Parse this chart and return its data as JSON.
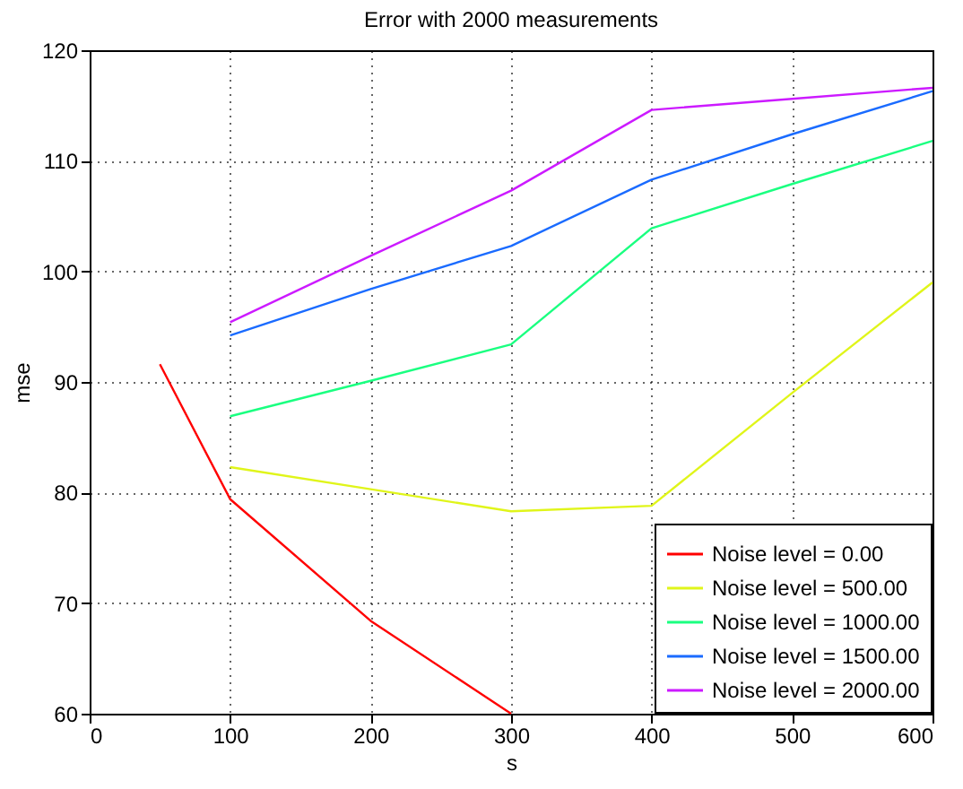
{
  "chart_data": {
    "type": "line",
    "title": "Error with 2000 measurements",
    "xlabel": "s",
    "ylabel": "mse",
    "xlim": [
      0,
      600
    ],
    "xticks": [
      0,
      100,
      200,
      300,
      400,
      500,
      600
    ],
    "ylim": [
      60,
      120
    ],
    "yticks": [
      60,
      70,
      80,
      90,
      100,
      110,
      120
    ],
    "grid": true,
    "legend": "bottom right",
    "line_style": "solid",
    "marker": "none",
    "series": [
      {
        "name": "Noise level = 0.00",
        "color": "#ff0000",
        "x": [
          50,
          100,
          200,
          300
        ],
        "values": [
          91.6,
          79.4,
          68.4,
          60
        ]
      },
      {
        "name": "Noise level = 500.00",
        "color": "#e0f51a",
        "x": [
          100,
          200,
          300,
          400,
          500,
          600
        ],
        "values": [
          82.3,
          80.3,
          78.3,
          78.8,
          89.0,
          99.0
        ]
      },
      {
        "name": "Noise level = 1000.00",
        "color": "#1aff80",
        "x": [
          100,
          200,
          300,
          400,
          500,
          600
        ],
        "values": [
          86.9,
          90.1,
          93.4,
          103.9,
          107.9,
          111.8
        ]
      },
      {
        "name": "Noise level = 1500.00",
        "color": "#1a6bff",
        "x": [
          100,
          200,
          300,
          400,
          500,
          600
        ],
        "values": [
          94.2,
          98.4,
          102.3,
          108.3,
          112.4,
          116.3
        ]
      },
      {
        "name": "Noise level = 2000.00",
        "color": "#cc1aff",
        "x": [
          100,
          200,
          300,
          400,
          500,
          600
        ],
        "values": [
          95.4,
          101.4,
          107.3,
          114.6,
          115.6,
          116.6
        ]
      }
    ]
  }
}
